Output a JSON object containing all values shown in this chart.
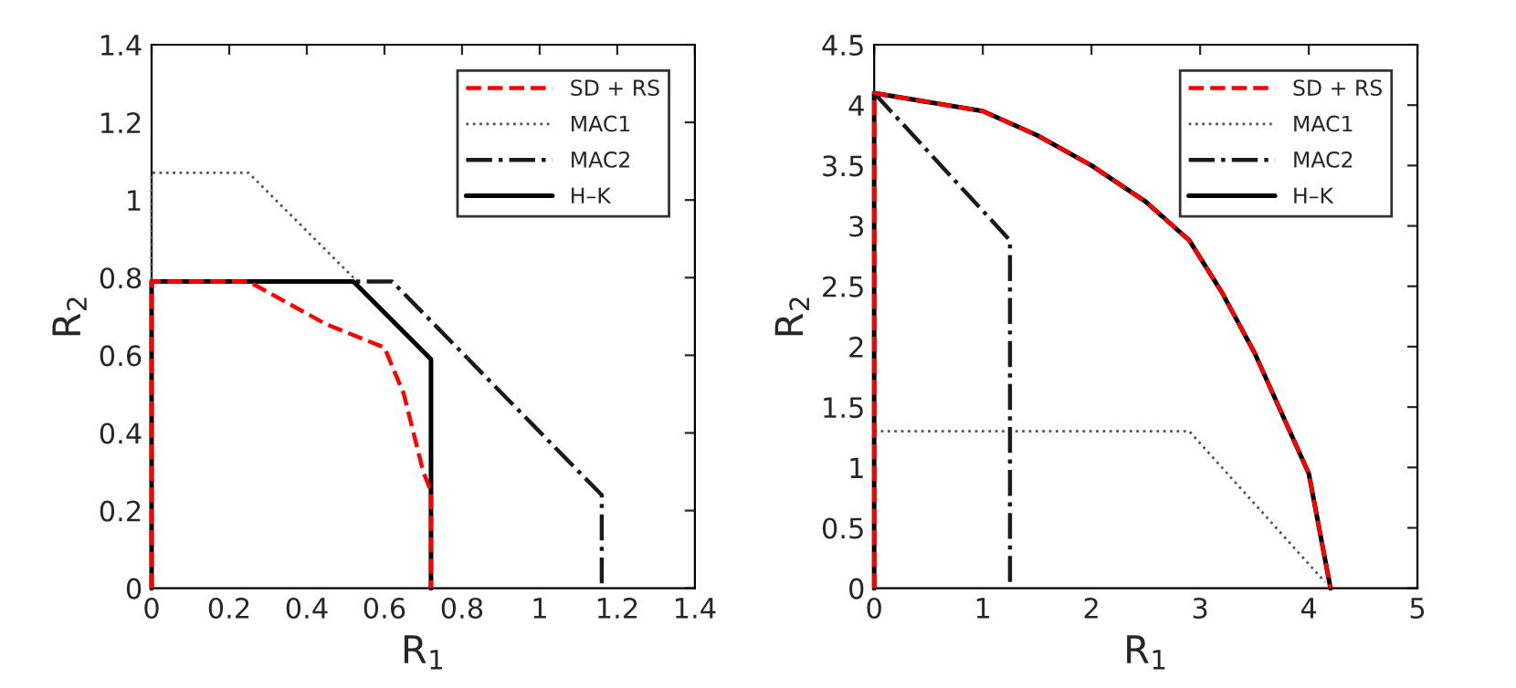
{
  "chart_data": [
    {
      "type": "line",
      "xlabel": "R$_{1}$",
      "ylabel": "R$_{2}$",
      "xlim": [
        0,
        1.4
      ],
      "ylim": [
        0,
        1.4
      ],
      "xticks": [
        0,
        0.2,
        0.4,
        0.6,
        0.8,
        1,
        1.2,
        1.4
      ],
      "yticks": [
        0,
        0.2,
        0.4,
        0.6,
        0.8,
        1,
        1.2,
        1.4
      ],
      "grid": false,
      "legend": "top right",
      "series": [
        {
          "name": "SD + RS",
          "color": "#ff0000",
          "line_style": "dashed",
          "x": [
            0,
            0,
            0.25,
            0.45,
            0.6,
            0.65,
            0.7,
            0.72,
            0.72
          ],
          "values": [
            0,
            0.79,
            0.79,
            0.68,
            0.62,
            0.5,
            0.3,
            0.25,
            0
          ]
        },
        {
          "name": "MAC1",
          "color": "#555555",
          "line_style": "dotted",
          "x": [
            0,
            0,
            0.25,
            0.52
          ],
          "values": [
            0,
            1.07,
            1.07,
            0.8
          ]
        },
        {
          "name": "MAC2",
          "color": "#1a1a1a",
          "line_style": "dashdot",
          "x": [
            0,
            0.62,
            1.16,
            1.16
          ],
          "values": [
            0.79,
            0.79,
            0.24,
            0
          ]
        },
        {
          "name": "H–K",
          "color": "#000000",
          "line_style": "solid",
          "x": [
            0,
            0,
            0.52,
            0.72,
            0.72
          ],
          "values": [
            0,
            0.79,
            0.79,
            0.59,
            0
          ]
        }
      ]
    },
    {
      "type": "line",
      "xlabel": "R$_{1}$",
      "ylabel": "R$_{2}$",
      "xlim": [
        0,
        5
      ],
      "ylim": [
        0,
        4.5
      ],
      "xticks": [
        0,
        1,
        2,
        3,
        4,
        5
      ],
      "yticks": [
        0,
        0.5,
        1,
        1.5,
        2,
        2.5,
        3,
        3.5,
        4,
        4.5
      ],
      "grid": false,
      "legend": "top right",
      "series": [
        {
          "name": "SD + RS",
          "color": "#ff0000",
          "line_style": "dashed",
          "x": [
            0,
            0,
            1,
            1.5,
            2,
            2.5,
            2.9,
            3.2,
            3.5,
            3.8,
            4.0,
            4.2
          ],
          "values": [
            0,
            4.1,
            3.95,
            3.75,
            3.5,
            3.2,
            2.88,
            2.45,
            1.95,
            1.35,
            0.95,
            0
          ]
        },
        {
          "name": "MAC1",
          "color": "#555555",
          "line_style": "dotted",
          "x": [
            0,
            2.9,
            4.15
          ],
          "values": [
            1.3,
            1.3,
            0.05
          ]
        },
        {
          "name": "MAC2",
          "color": "#1a1a1a",
          "line_style": "dashdot",
          "x": [
            0,
            1.25,
            1.25
          ],
          "values": [
            4.1,
            2.88,
            0
          ]
        },
        {
          "name": "H–K",
          "color": "#000000",
          "line_style": "solid",
          "x": [
            0,
            0,
            1,
            1.5,
            2,
            2.5,
            2.9,
            3.2,
            3.5,
            3.8,
            4.0,
            4.2
          ],
          "values": [
            0,
            4.1,
            3.95,
            3.75,
            3.5,
            3.2,
            2.88,
            2.45,
            1.95,
            1.35,
            0.95,
            0
          ]
        }
      ]
    }
  ]
}
